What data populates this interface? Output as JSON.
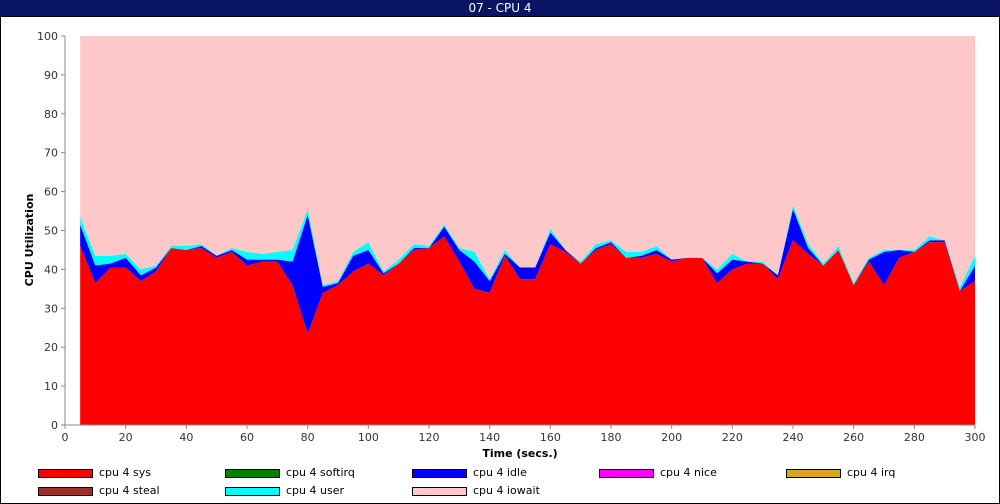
{
  "window": {
    "title": "07 - CPU 4"
  },
  "chart_data": {
    "type": "area",
    "stacked": true,
    "title": "07 - CPU 4",
    "xlabel": "Time (secs.)",
    "ylabel": "CPU Utilization",
    "xlim": [
      0,
      300
    ],
    "ylim": [
      0,
      100
    ],
    "xticks": [
      0,
      20,
      40,
      60,
      80,
      100,
      120,
      140,
      160,
      180,
      200,
      220,
      240,
      260,
      280,
      300
    ],
    "yticks": [
      0,
      10,
      20,
      30,
      40,
      50,
      60,
      70,
      80,
      90,
      100
    ],
    "grid": false,
    "legend_position": "bottom",
    "x": [
      5,
      10,
      15,
      20,
      25,
      30,
      35,
      40,
      45,
      50,
      55,
      60,
      65,
      70,
      75,
      80,
      85,
      90,
      95,
      100,
      105,
      110,
      115,
      120,
      125,
      130,
      135,
      140,
      145,
      150,
      155,
      160,
      165,
      170,
      175,
      180,
      185,
      190,
      195,
      200,
      205,
      210,
      215,
      220,
      225,
      230,
      235,
      240,
      245,
      250,
      255,
      260,
      265,
      270,
      275,
      280,
      285,
      290,
      295,
      300
    ],
    "series": [
      {
        "name": "cpu 4 sys",
        "color": "#ff0000",
        "values": [
          46,
          36.5,
          40.5,
          40.5,
          37,
          39.5,
          45.5,
          45,
          45.5,
          43,
          44.5,
          41,
          42,
          42,
          36,
          23.5,
          34,
          36,
          39.5,
          41.5,
          38.5,
          41.5,
          45,
          45.5,
          48.5,
          42,
          35,
          34,
          43.5,
          37.5,
          37.5,
          46.5,
          44.5,
          41.5,
          45,
          46.5,
          43,
          43,
          44,
          42,
          43,
          43,
          36.5,
          40,
          41.5,
          41.5,
          37.5,
          47.5,
          44,
          41,
          45,
          36,
          42,
          36,
          43,
          44.5,
          47,
          47,
          34.5,
          37
        ]
      },
      {
        "name": "cpu 4 softirq",
        "color": "#008000",
        "values": [
          0,
          0,
          0,
          0,
          0,
          0,
          0,
          0,
          0,
          0,
          0,
          0,
          0,
          0,
          0,
          0,
          0,
          0,
          0,
          0,
          0,
          0,
          0,
          0,
          0,
          0,
          0,
          0,
          0,
          0,
          0,
          0,
          0,
          0,
          0,
          0,
          0,
          0,
          0,
          0,
          0,
          0,
          0,
          0,
          0,
          0,
          0,
          0,
          0,
          0,
          0,
          0,
          0,
          0,
          0,
          0,
          0,
          0,
          0,
          0
        ]
      },
      {
        "name": "cpu 4 idle",
        "color": "#0000ff",
        "values": [
          5.5,
          4.5,
          1.0,
          2.5,
          1.5,
          1.0,
          0,
          0,
          0.5,
          0.5,
          0.5,
          1.5,
          0.5,
          0.5,
          6,
          30.5,
          1.5,
          0.5,
          4,
          3.5,
          0.5,
          0,
          0.5,
          0,
          2.5,
          3,
          7,
          3,
          0.5,
          3,
          3,
          3,
          0.5,
          0,
          0.5,
          0.5,
          0,
          0.5,
          1,
          0.5,
          0,
          0,
          2.5,
          2.5,
          0.5,
          0,
          1,
          8,
          1.5,
          0,
          0,
          0,
          0.5,
          8.5,
          2,
          0,
          0.5,
          0.5,
          0,
          4
        ]
      },
      {
        "name": "cpu 4 nice",
        "color": "#ff00ff",
        "values": [
          0,
          0,
          0,
          0,
          0,
          0,
          0,
          0,
          0,
          0,
          0,
          0,
          0,
          0,
          0,
          0,
          0,
          0,
          0,
          0,
          0,
          0,
          0,
          0,
          0,
          0,
          0,
          0,
          0,
          0,
          0,
          0,
          0,
          0,
          0,
          0,
          0,
          0,
          0,
          0,
          0,
          0,
          0,
          0,
          0,
          0,
          0,
          0,
          0,
          0,
          0,
          0,
          0,
          0,
          0,
          0,
          0,
          0,
          0,
          0
        ]
      },
      {
        "name": "cpu 4 irq",
        "color": "#daa520",
        "values": [
          0,
          0,
          0,
          0,
          0,
          0,
          0,
          0,
          0,
          0,
          0,
          0,
          0,
          0,
          0,
          0,
          0,
          0,
          0,
          0,
          0,
          0,
          0,
          0,
          0,
          0,
          0,
          0,
          0,
          0,
          0,
          0,
          0,
          0,
          0,
          0,
          0,
          0,
          0,
          0,
          0,
          0,
          0,
          0,
          0,
          0,
          0,
          0,
          0,
          0,
          0,
          0,
          0,
          0,
          0,
          0,
          0,
          0,
          0,
          0
        ]
      },
      {
        "name": "cpu 4 steal",
        "color": "#a52a2a",
        "values": [
          0,
          0,
          0,
          0,
          0,
          0,
          0,
          0,
          0,
          0,
          0,
          0,
          0,
          0,
          0,
          0,
          0,
          0,
          0,
          0,
          0,
          0,
          0,
          0,
          0,
          0,
          0,
          0,
          0,
          0,
          0,
          0,
          0,
          0,
          0,
          0,
          0,
          0,
          0,
          0,
          0,
          0,
          0,
          0,
          0,
          0,
          0,
          0,
          0,
          0,
          0,
          0,
          0,
          0,
          0,
          0,
          0,
          0,
          0,
          0
        ]
      },
      {
        "name": "cpu 4 user",
        "color": "#00ffff",
        "values": [
          2,
          2.5,
          2,
          1,
          1.5,
          0.5,
          0.5,
          1,
          0.5,
          0,
          0.5,
          2,
          1.5,
          2,
          3,
          1.5,
          0.5,
          0.5,
          1,
          2,
          0.5,
          1,
          1,
          0.5,
          0.5,
          0.5,
          2.5,
          0.5,
          1,
          0,
          0,
          1,
          0,
          0.5,
          1,
          0.5,
          1.5,
          1,
          1,
          0,
          0,
          0,
          1,
          1.5,
          0,
          0.5,
          0,
          1,
          1,
          0.5,
          1,
          0.5,
          0.5,
          0.5,
          0,
          0.5,
          1,
          0,
          1,
          2.5
        ]
      },
      {
        "name": "cpu 4 iowait",
        "color": "#ffc8c8",
        "values": [
          46.5,
          56.5,
          56.5,
          56,
          60,
          59,
          54,
          54,
          53.5,
          56.5,
          54.5,
          55.5,
          56,
          55.5,
          55,
          44.5,
          64,
          63,
          55.5,
          53,
          60.5,
          57.5,
          53.5,
          54,
          48.5,
          54.5,
          55.5,
          62.5,
          55,
          59.5,
          59.5,
          49.5,
          55,
          58,
          53.5,
          52.5,
          55.5,
          55.5,
          54,
          57.5,
          57,
          57,
          60,
          56,
          58,
          58,
          61.5,
          43.5,
          53.5,
          58.5,
          54,
          63.5,
          57,
          55,
          55,
          55,
          51.5,
          52.5,
          64.5,
          56.5
        ]
      }
    ]
  }
}
